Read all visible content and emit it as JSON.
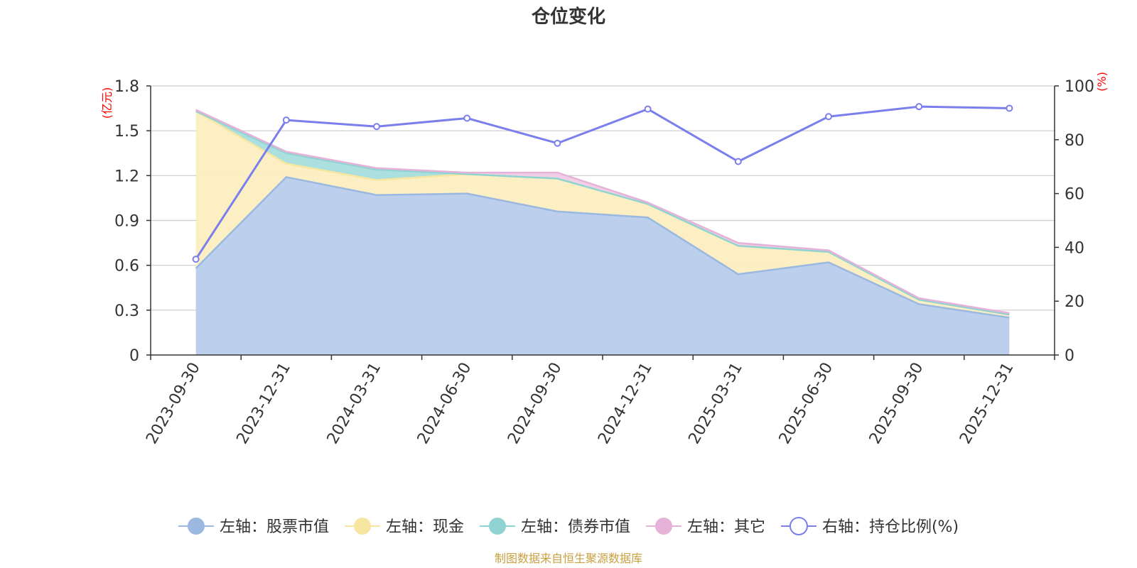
{
  "chart_data": {
    "type": "area",
    "title": "仓位变化",
    "categories": [
      "2023-09-30",
      "2023-12-31",
      "2024-03-31",
      "2024-06-30",
      "2024-09-30",
      "2024-12-31",
      "2025-03-31",
      "2025-06-30",
      "2025-09-30",
      "2025-12-31"
    ],
    "left_axis": {
      "unit_label": "(亿元)",
      "ylim": [
        0,
        1.8
      ],
      "ticks": [
        "0",
        "0.3",
        "0.6",
        "0.9",
        "1.2",
        "1.5",
        "1.8"
      ],
      "unit_color": "#ff0000"
    },
    "right_axis": {
      "unit_label": "(%)",
      "ylim": [
        0,
        100
      ],
      "ticks": [
        "0",
        "20",
        "40",
        "60",
        "80",
        "100"
      ],
      "unit_color": "#ff0000"
    },
    "series": [
      {
        "name": "左轴：股票市值",
        "axis": "left",
        "stack": true,
        "color": "#9ab8e0",
        "fill": "#b8cceb",
        "values": [
          0.58,
          1.19,
          1.07,
          1.08,
          0.96,
          0.92,
          0.54,
          0.62,
          0.34,
          0.25
        ]
      },
      {
        "name": "左轴：现金",
        "axis": "left",
        "stack": true,
        "color": "#f7e6a0",
        "fill": "#fbeec0",
        "values": [
          1.05,
          0.09,
          0.1,
          0.13,
          0.22,
          0.09,
          0.19,
          0.07,
          0.03,
          0.02
        ]
      },
      {
        "name": "左轴：债券市值",
        "axis": "left",
        "stack": true,
        "color": "#8fd3d3",
        "fill": "#a8dedd",
        "values": [
          0,
          0.07,
          0.07,
          0,
          0,
          0,
          0,
          0,
          0,
          0
        ]
      },
      {
        "name": "左轴：其它",
        "axis": "left",
        "stack": true,
        "color": "#e6b2d8",
        "fill": "#f0cde6",
        "values": [
          0.01,
          0.01,
          0.01,
          0.01,
          0.04,
          0.01,
          0.02,
          0.01,
          0.01,
          0.01
        ]
      },
      {
        "name": "右轴：持仓比例(%)",
        "axis": "right",
        "stack": false,
        "color": "#7b7fed",
        "values": [
          35.6,
          87.3,
          84.9,
          88.0,
          78.7,
          91.4,
          71.9,
          88.6,
          92.3,
          91.7
        ]
      }
    ],
    "legend_position": "bottom-center"
  },
  "source_text": "制图数据来自恒生聚源数据库",
  "source_color": "#c8a040",
  "axis_color": "#333333",
  "grid_color": "#cccccc"
}
